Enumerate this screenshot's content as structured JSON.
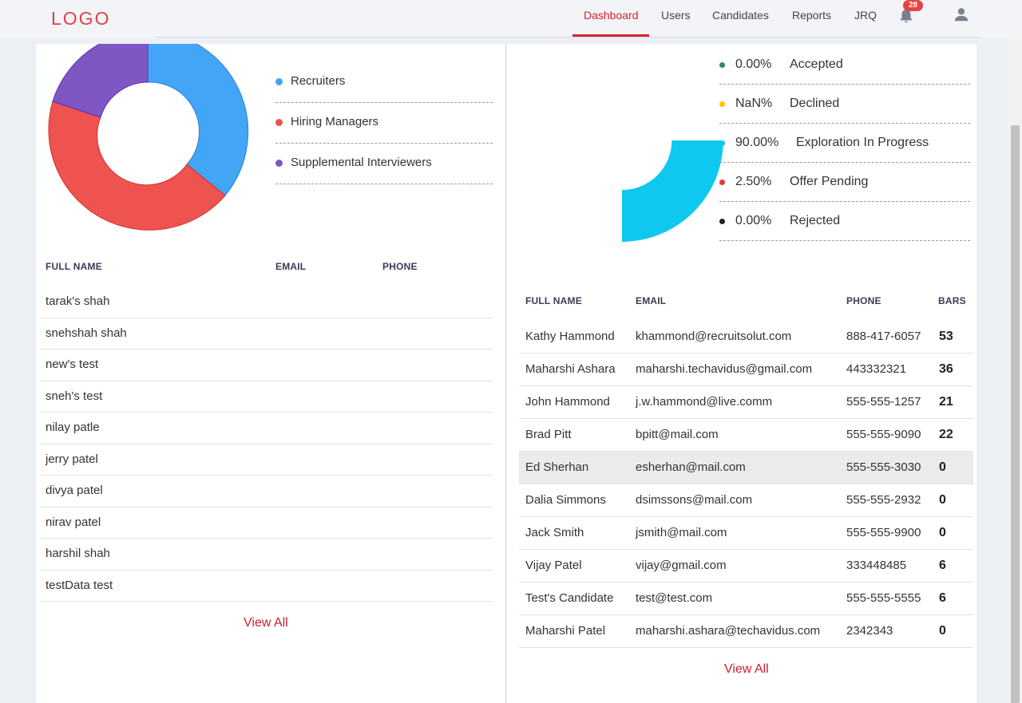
{
  "header": {
    "logo": "LOGO",
    "nav": [
      {
        "label": "Dashboard",
        "active": true
      },
      {
        "label": "Users"
      },
      {
        "label": "Candidates"
      },
      {
        "label": "Reports"
      },
      {
        "label": "JRQ"
      }
    ],
    "notification_count": "28",
    "icons": [
      "bell-icon",
      "user-icon"
    ]
  },
  "colors": {
    "accent": "#d8232f",
    "recruiters": "#42a5f5",
    "hiring_managers": "#ef5350",
    "supplemental": "#7e57c2",
    "accepted": "#2e8b57",
    "declined": "#ffc107",
    "exploration": "#0fc8ef",
    "offer_pending": "#e53935",
    "rejected": "#212121"
  },
  "users_chart": {
    "legend": [
      {
        "label": "Recruiters"
      },
      {
        "label": "Hiring Managers"
      },
      {
        "label": "Supplemental Interviewers"
      }
    ]
  },
  "candidates_chart": {
    "legend": [
      {
        "pct": "0.00%",
        "label": "Accepted"
      },
      {
        "pct": "NaN%",
        "label": "Declined"
      },
      {
        "pct": "90.00%",
        "label": "Exploration In Progress"
      },
      {
        "pct": "2.50%",
        "label": "Offer Pending"
      },
      {
        "pct": "0.00%",
        "label": "Rejected"
      }
    ]
  },
  "users_table": {
    "headers": {
      "name": "FULL NAME",
      "email": "EMAIL",
      "phone": "PHONE"
    },
    "rows": [
      "tarak's shah",
      "snehshah shah",
      "new's test",
      "sneh's test",
      "nilay patle",
      "jerry patel",
      "divya patel",
      "nirav patel",
      "harshil shah",
      "testData test"
    ],
    "view_all": "View All"
  },
  "candidates_table": {
    "headers": {
      "name": "FULL NAME",
      "email": "EMAIL",
      "phone": "PHONE",
      "bars": "BARS"
    },
    "rows": [
      {
        "name": "Kathy Hammond",
        "email": "khammond@recruitsolut.com",
        "phone": "888-417-6057",
        "bars": "53"
      },
      {
        "name": "Maharshi Ashara",
        "email": "maharshi.techavidus@gmail.com",
        "phone": "443332321",
        "bars": "36"
      },
      {
        "name": "John Hammond",
        "email": "j.w.hammond@live.comm",
        "phone": "555-555-1257",
        "bars": "21"
      },
      {
        "name": "Brad Pitt",
        "email": "bpitt@mail.com",
        "phone": "555-555-9090",
        "bars": "22"
      },
      {
        "name": "Ed Sherhan",
        "email": "esherhan@mail.com",
        "phone": "555-555-3030",
        "bars": "0"
      },
      {
        "name": "Dalia Simmons",
        "email": "dsimssons@mail.com",
        "phone": "555-555-2932",
        "bars": "0"
      },
      {
        "name": "Jack Smith",
        "email": "jsmith@mail.com",
        "phone": "555-555-9900",
        "bars": "0"
      },
      {
        "name": "Vijay Patel",
        "email": "vijay@gmail.com",
        "phone": "333448485",
        "bars": "6"
      },
      {
        "name": "Test's Candidate",
        "email": "test@test.com",
        "phone": "555-555-5555",
        "bars": "6"
      },
      {
        "name": "Maharshi Patel",
        "email": "maharshi.ashara@techavidus.com",
        "phone": "2342343",
        "bars": "0"
      }
    ],
    "view_all": "View All"
  }
}
